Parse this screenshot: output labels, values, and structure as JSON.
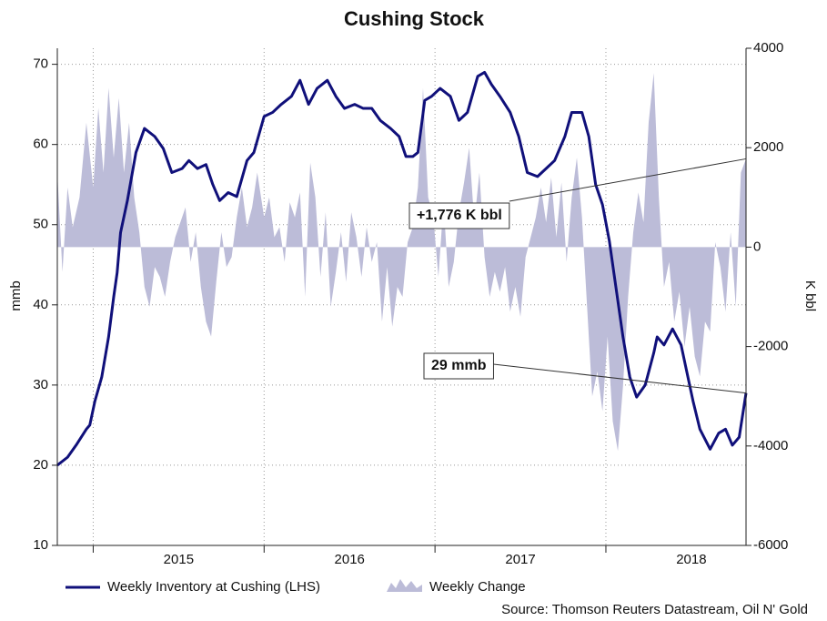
{
  "chart_data": {
    "type": "line-area",
    "title": "Cushing Stock",
    "y_label": "mmb",
    "y2_label": "K bbl",
    "source": "Source: Thomson Reuters Datastream, Oil N' Gold",
    "xlim": [
      2014.79,
      2018.82
    ],
    "xticks": [
      2015,
      2016,
      2017,
      2018
    ],
    "ylim": [
      10,
      72
    ],
    "yticks": [
      10,
      20,
      30,
      40,
      50,
      60,
      70
    ],
    "y2lim": [
      -6000,
      4000
    ],
    "y2ticks": [
      -6000,
      -4000,
      -2000,
      0,
      2000,
      4000
    ],
    "grid": true,
    "legend": "bottom",
    "series": [
      {
        "name": "Weekly Inventory at Cushing (LHS)",
        "type": "line",
        "color": "#10107a",
        "x": [
          2014.79,
          2014.85,
          2014.9,
          2014.96,
          2014.98,
          2015.01,
          2015.05,
          2015.09,
          2015.12,
          2015.14,
          2015.16,
          2015.2,
          2015.25,
          2015.3,
          2015.36,
          2015.41,
          2015.46,
          2015.52,
          2015.56,
          2015.61,
          2015.66,
          2015.7,
          2015.74,
          2015.79,
          2015.84,
          2015.9,
          2015.94,
          2016.0,
          2016.05,
          2016.1,
          2016.16,
          2016.21,
          2016.26,
          2016.31,
          2016.37,
          2016.42,
          2016.47,
          2016.53,
          2016.58,
          2016.63,
          2016.68,
          2016.74,
          2016.79,
          2016.83,
          2016.87,
          2016.9,
          2016.94,
          2016.98,
          2017.03,
          2017.09,
          2017.14,
          2017.19,
          2017.25,
          2017.29,
          2017.33,
          2017.38,
          2017.44,
          2017.49,
          2017.54,
          2017.6,
          2017.65,
          2017.7,
          2017.76,
          2017.8,
          2017.86,
          2017.9,
          2017.94,
          2017.98,
          2018.02,
          2018.06,
          2018.1,
          2018.14,
          2018.18,
          2018.23,
          2018.28,
          2018.3,
          2018.34,
          2018.39,
          2018.44,
          2018.47,
          2018.51,
          2018.55,
          2018.61,
          2018.66,
          2018.7,
          2018.74,
          2018.78,
          2018.82
        ],
        "values": [
          20,
          21,
          22.5,
          24.5,
          25,
          28,
          31,
          36,
          41,
          44,
          49,
          53,
          59,
          62,
          61,
          59.5,
          56.5,
          57,
          58,
          57,
          57.5,
          55,
          53,
          54,
          53.5,
          58,
          59,
          63.5,
          64,
          65,
          66,
          68,
          65,
          67,
          68,
          66,
          64.5,
          65,
          64.5,
          64.5,
          63,
          62,
          61,
          58.5,
          58.5,
          59,
          65.5,
          66,
          67,
          66,
          63,
          64,
          68.5,
          69,
          67.5,
          66,
          64,
          61,
          56.5,
          56,
          57,
          58,
          61,
          64,
          64,
          61,
          55,
          52.5,
          48,
          42,
          36,
          31,
          28.5,
          30,
          34,
          36,
          35,
          37,
          35,
          32,
          28,
          24.5,
          22,
          24,
          24.5,
          22.5,
          23.5,
          29
        ]
      },
      {
        "name": "Weekly Change",
        "type": "area",
        "axis": "y2",
        "color": "#bcbcd8",
        "x": [
          2014.79,
          2014.82,
          2014.85,
          2014.88,
          2014.92,
          2014.96,
          2015.0,
          2015.03,
          2015.06,
          2015.09,
          2015.12,
          2015.15,
          2015.18,
          2015.21,
          2015.24,
          2015.27,
          2015.3,
          2015.33,
          2015.36,
          2015.39,
          2015.42,
          2015.45,
          2015.48,
          2015.51,
          2015.54,
          2015.57,
          2015.6,
          2015.63,
          2015.66,
          2015.69,
          2015.72,
          2015.75,
          2015.78,
          2015.81,
          2015.84,
          2015.87,
          2015.9,
          2015.93,
          2015.96,
          2016.0,
          2016.03,
          2016.06,
          2016.09,
          2016.12,
          2016.15,
          2016.18,
          2016.21,
          2016.24,
          2016.27,
          2016.3,
          2016.33,
          2016.36,
          2016.39,
          2016.42,
          2016.45,
          2016.48,
          2016.51,
          2016.54,
          2016.57,
          2016.6,
          2016.63,
          2016.66,
          2016.69,
          2016.72,
          2016.75,
          2016.78,
          2016.81,
          2016.84,
          2016.87,
          2016.9,
          2016.93,
          2016.96,
          2016.99,
          2017.02,
          2017.05,
          2017.08,
          2017.11,
          2017.14,
          2017.17,
          2017.2,
          2017.23,
          2017.26,
          2017.29,
          2017.32,
          2017.35,
          2017.38,
          2017.41,
          2017.44,
          2017.47,
          2017.5,
          2017.53,
          2017.56,
          2017.59,
          2017.62,
          2017.65,
          2017.68,
          2017.71,
          2017.74,
          2017.77,
          2017.8,
          2017.83,
          2017.86,
          2017.89,
          2017.92,
          2017.95,
          2017.98,
          2018.01,
          2018.04,
          2018.07,
          2018.1,
          2018.13,
          2018.16,
          2018.19,
          2018.22,
          2018.25,
          2018.28,
          2018.31,
          2018.34,
          2018.37,
          2018.4,
          2018.43,
          2018.46,
          2018.49,
          2018.52,
          2018.55,
          2018.58,
          2018.61,
          2018.64,
          2018.67,
          2018.7,
          2018.73,
          2018.76,
          2018.79,
          2018.82
        ],
        "values": [
          1500,
          -500,
          1200,
          400,
          1000,
          2500,
          1200,
          2800,
          1500,
          3200,
          1800,
          3000,
          1500,
          2500,
          1000,
          300,
          -800,
          -1200,
          -400,
          -600,
          -1000,
          -300,
          200,
          500,
          800,
          -300,
          300,
          -800,
          -1500,
          -1800,
          -700,
          300,
          -400,
          -200,
          600,
          1200,
          400,
          800,
          1500,
          600,
          1000,
          200,
          400,
          -300,
          900,
          600,
          1100,
          -1000,
          1700,
          1000,
          -600,
          700,
          -1200,
          -500,
          300,
          -700,
          700,
          200,
          -600,
          400,
          -300,
          100,
          -1500,
          -400,
          -1600,
          -800,
          -1000,
          100,
          400,
          1200,
          3200,
          1000,
          600,
          -600,
          900,
          -800,
          -300,
          700,
          1300,
          2000,
          500,
          1500,
          -200,
          -1000,
          -500,
          -900,
          -400,
          -1300,
          -800,
          -1400,
          -200,
          200,
          600,
          1200,
          500,
          1400,
          200,
          1300,
          -300,
          1000,
          1800,
          600,
          -1200,
          -3000,
          -2500,
          -3300,
          -1800,
          -3500,
          -4100,
          -2800,
          -1000,
          300,
          1100,
          500,
          2500,
          3500,
          1000,
          -800,
          -300,
          -1500,
          -900,
          -2000,
          -1200,
          -2200,
          -2600,
          -1500,
          -1700,
          100,
          -400,
          -1300,
          300,
          -1200,
          1500,
          1776
        ]
      }
    ],
    "annotations": [
      {
        "text": "+1,776 K bbl",
        "series": 1
      },
      {
        "text": "29 mmb",
        "series": 0
      }
    ]
  }
}
